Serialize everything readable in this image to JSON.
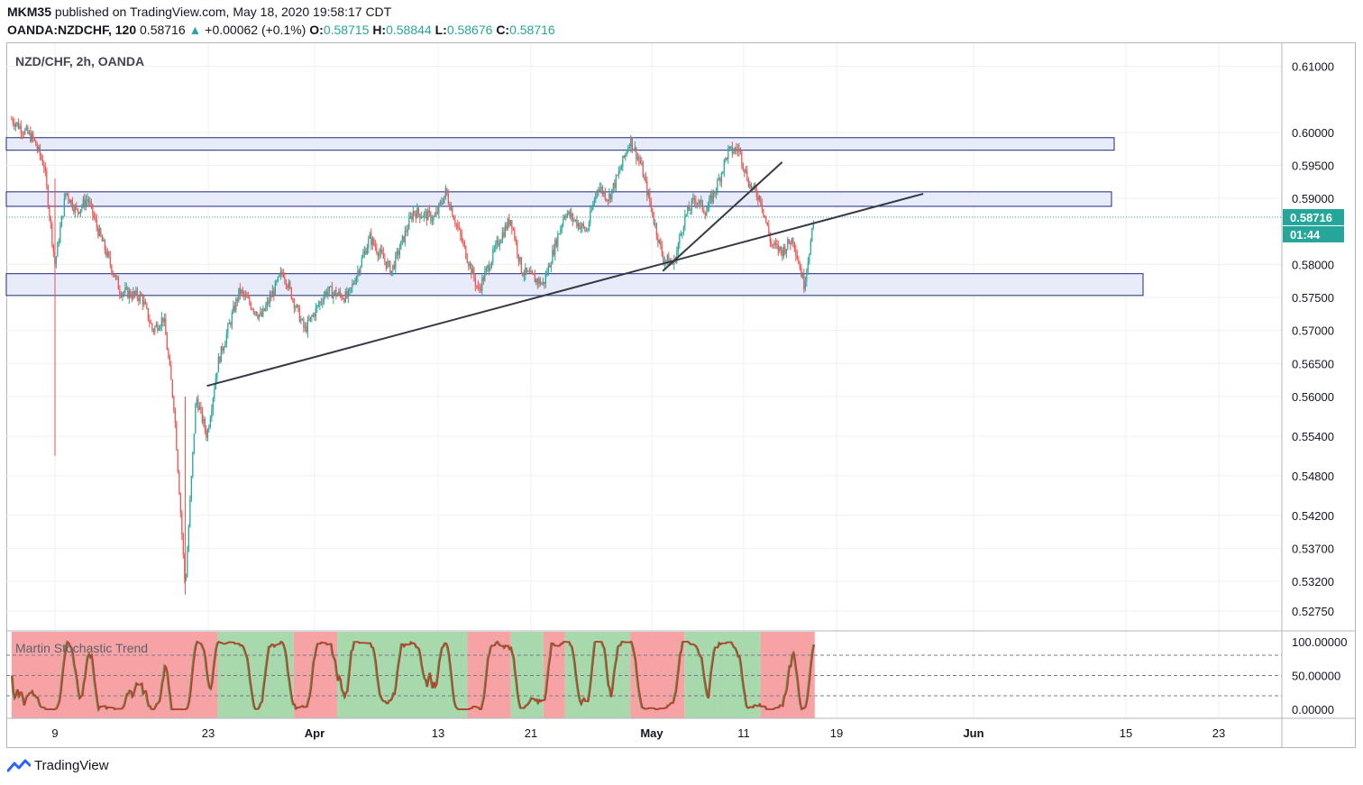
{
  "header": {
    "author": "MKM35",
    "published_text": "published on TradingView.com, May 18, 2020 19:58:17 CDT",
    "symbol": "OANDA:NZDCHF, 120",
    "last": "0.58716",
    "change_arrow": "▲",
    "change": "+0.00062 (+0.1%)",
    "o_label": "O:",
    "o": "0.58715",
    "h_label": "H:",
    "h": "0.58844",
    "l_label": "L:",
    "l": "0.58676",
    "c_label": "C:",
    "c": "0.58716"
  },
  "chart_title": "NZD/CHF, 2h, OANDA",
  "price_label": "0.58716",
  "countdown_label": "01:44",
  "indicator_name": "Martin Stochastic Trend",
  "y_ticks": [
    "0.61000",
    "0.60000",
    "0.59500",
    "0.59000",
    "0.58000",
    "0.57500",
    "0.57000",
    "0.56500",
    "0.56000",
    "0.55400",
    "0.54800",
    "0.54200",
    "0.53700",
    "0.53200",
    "0.52750"
  ],
  "y_ticks_partial": "0",
  "osc_ticks": [
    "100.00000",
    "50.00000",
    "0.00000"
  ],
  "x_ticks": [
    "9",
    "23",
    "Apr",
    "13",
    "21",
    "May",
    "11",
    "19",
    "Jun",
    "15",
    "23"
  ],
  "footer_brand": "TradingView",
  "colors": {
    "up": "#26a69a",
    "down": "#ef5350",
    "zone_fill": "#e8ebfa",
    "zone_stroke": "#1e2a78",
    "trendline": "#363a45",
    "osc_red_bg": "#f7a3a5",
    "osc_green_bg": "#a8d9ad",
    "osc_line_red": "#d32f2f",
    "osc_line_green": "#43a047"
  },
  "chart_data": {
    "type": "candlestick",
    "title": "NZD/CHF, 2h, OANDA",
    "interval": "2h",
    "ylim": [
      0.5245,
      0.6135
    ],
    "x_axis_ticks": [
      "9",
      "23",
      "Apr",
      "13",
      "21",
      "May",
      "11",
      "19",
      "Jun",
      "15",
      "23"
    ],
    "anchor_points": [
      {
        "x": "Mar 5",
        "y": 0.602
      },
      {
        "x": "Mar 7",
        "y": 0.599
      },
      {
        "x": "Mar 8",
        "y": 0.595
      },
      {
        "x": "Mar 9",
        "y": 0.58
      },
      {
        "x": "Mar 10",
        "y": 0.591
      },
      {
        "x": "Mar 11",
        "y": 0.588
      },
      {
        "x": "Mar 12",
        "y": 0.59
      },
      {
        "x": "Mar 13",
        "y": 0.585
      },
      {
        "x": "Mar 15",
        "y": 0.576
      },
      {
        "x": "Mar 17",
        "y": 0.575
      },
      {
        "x": "Mar 18",
        "y": 0.57
      },
      {
        "x": "Mar 19",
        "y": 0.572
      },
      {
        "x": "Mar 20",
        "y": 0.558
      },
      {
        "x": "Mar 21",
        "y": 0.531
      },
      {
        "x": "Mar 22",
        "y": 0.56
      },
      {
        "x": "Mar 23",
        "y": 0.554
      },
      {
        "x": "Mar 24",
        "y": 0.565
      },
      {
        "x": "Mar 26",
        "y": 0.576
      },
      {
        "x": "Mar 28",
        "y": 0.572
      },
      {
        "x": "Mar 30",
        "y": 0.579
      },
      {
        "x": "Apr 1",
        "y": 0.57
      },
      {
        "x": "Apr 3",
        "y": 0.576
      },
      {
        "x": "Apr 5",
        "y": 0.575
      },
      {
        "x": "Apr 7",
        "y": 0.584
      },
      {
        "x": "Apr 9",
        "y": 0.579
      },
      {
        "x": "Apr 11",
        "y": 0.588
      },
      {
        "x": "Apr 13",
        "y": 0.587
      },
      {
        "x": "Apr 14",
        "y": 0.591
      },
      {
        "x": "Apr 16",
        "y": 0.581
      },
      {
        "x": "Apr 17",
        "y": 0.576
      },
      {
        "x": "Apr 19",
        "y": 0.584
      },
      {
        "x": "Apr 20",
        "y": 0.587
      },
      {
        "x": "Apr 21",
        "y": 0.579
      },
      {
        "x": "Apr 23",
        "y": 0.577
      },
      {
        "x": "Apr 25",
        "y": 0.588
      },
      {
        "x": "Apr 27",
        "y": 0.585
      },
      {
        "x": "Apr 28",
        "y": 0.592
      },
      {
        "x": "Apr 29",
        "y": 0.59
      },
      {
        "x": "Apr 30",
        "y": 0.594
      },
      {
        "x": "May 1",
        "y": 0.599
      },
      {
        "x": "May 2",
        "y": 0.595
      },
      {
        "x": "May 3",
        "y": 0.588
      },
      {
        "x": "May 4",
        "y": 0.581
      },
      {
        "x": "May 5",
        "y": 0.58
      },
      {
        "x": "May 6",
        "y": 0.587
      },
      {
        "x": "May 7",
        "y": 0.59
      },
      {
        "x": "May 8",
        "y": 0.588
      },
      {
        "x": "May 9",
        "y": 0.592
      },
      {
        "x": "May 10",
        "y": 0.597
      },
      {
        "x": "May 11",
        "y": 0.5975
      },
      {
        "x": "May 12",
        "y": 0.592
      },
      {
        "x": "May 13",
        "y": 0.59
      },
      {
        "x": "May 14",
        "y": 0.583
      },
      {
        "x": "May 15",
        "y": 0.582
      },
      {
        "x": "May 16",
        "y": 0.584
      },
      {
        "x": "May 17",
        "y": 0.577
      },
      {
        "x": "May 18",
        "y": 0.5872
      }
    ],
    "zones": [
      {
        "y_low": 0.5973,
        "y_high": 0.5992
      },
      {
        "y_low": 0.5888,
        "y_high": 0.591
      },
      {
        "y_low": 0.5753,
        "y_high": 0.5786
      }
    ],
    "trendlines": [
      {
        "from": {
          "x": "Mar 23",
          "y": 0.5616
        },
        "to": {
          "x": "May 28",
          "y": 0.5907
        }
      },
      {
        "from": {
          "x": "May 4",
          "y": 0.579
        },
        "to": {
          "x": "May 15",
          "y": 0.5955
        }
      }
    ],
    "indicator": {
      "name": "Martin Stochastic Trend",
      "ylim": [
        0,
        100
      ],
      "levels": [
        80,
        50,
        20
      ]
    }
  }
}
